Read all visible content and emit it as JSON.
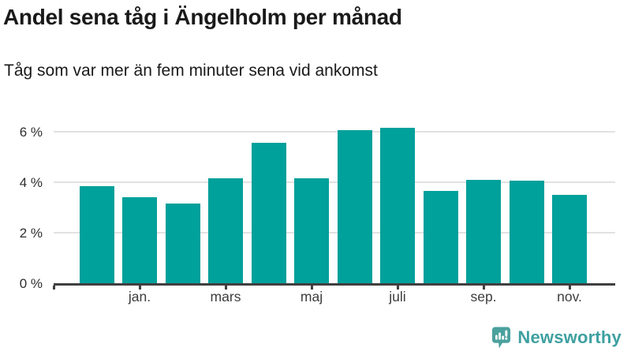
{
  "header": {
    "title": "Andel sena tåg i Ängelholm per månad",
    "subtitle": "Tåg som var mer än fem minuter sena vid ankomst"
  },
  "chart_data": {
    "type": "bar",
    "title": "Andel sena tåg i Ängelholm per månad",
    "subtitle": "Tåg som var mer än fem minuter sena vid ankomst",
    "categories": [
      "",
      "jan.",
      "",
      "mars",
      "",
      "maj",
      "",
      "juli",
      "",
      "sep.",
      "",
      "nov."
    ],
    "values": [
      3.85,
      3.4,
      3.15,
      4.15,
      5.55,
      4.15,
      6.05,
      6.15,
      3.65,
      4.1,
      4.05,
      3.5
    ],
    "unit": "%",
    "xlabel": "",
    "ylabel": "",
    "ylim": [
      0,
      6.5
    ],
    "yticks": [
      0,
      2,
      4,
      6
    ],
    "ytick_labels": [
      "0 %",
      "2 %",
      "4 %",
      "6 %"
    ],
    "grid": true,
    "legend_position": "none",
    "bar_color": "#00a09b"
  },
  "footer": {
    "brand": "Newsworthy"
  },
  "colors": {
    "bar": "#00a09b",
    "grid": "#e2e2e2",
    "axis": "#3f3f3f",
    "title_text": "#1a1a1a",
    "brand_text": "#3fa0a0",
    "logo_bubble": "#4ba19d"
  }
}
